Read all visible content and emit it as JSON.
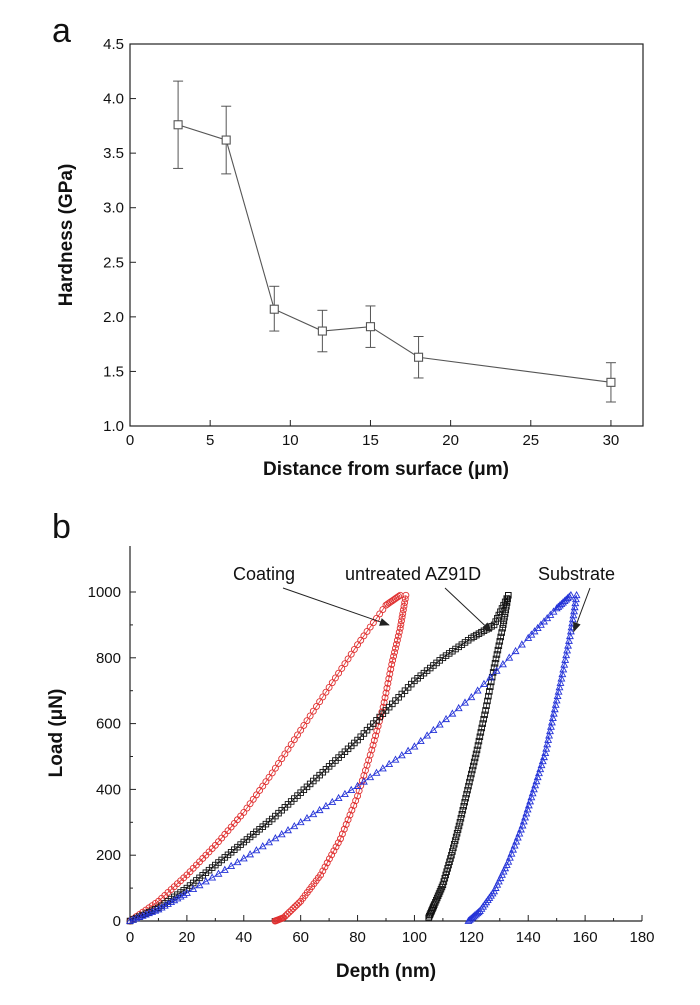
{
  "figure": {
    "background": "#ffffff"
  },
  "chart_data": [
    {
      "type": "scatter",
      "panel_label": "a",
      "xlabel": "Distance from surface (μm)",
      "ylabel": "Hardness (GPa)",
      "xlim": [
        0,
        32
      ],
      "ylim": [
        1.0,
        4.5
      ],
      "xticks": [
        0,
        5,
        10,
        15,
        20,
        25,
        30
      ],
      "yticks": [
        1.0,
        1.5,
        2.0,
        2.5,
        3.0,
        3.5,
        4.0,
        4.5
      ],
      "series": [
        {
          "marker": "open-square",
          "line": true,
          "color": "#555555",
          "x": [
            3,
            6,
            9,
            12,
            15,
            18,
            30
          ],
          "y": [
            3.76,
            3.62,
            2.07,
            1.87,
            1.91,
            1.63,
            1.4
          ],
          "err_low": [
            3.36,
            3.31,
            1.87,
            1.68,
            1.72,
            1.44,
            1.22
          ],
          "err_high": [
            4.16,
            3.93,
            2.28,
            2.06,
            2.1,
            1.82,
            1.58
          ]
        }
      ]
    },
    {
      "type": "scatter",
      "panel_label": "b",
      "xlabel": "Depth (nm)",
      "ylabel": "Load (μN)",
      "xlim": [
        0,
        180
      ],
      "ylim": [
        0,
        1130
      ],
      "xticks": [
        0,
        20,
        40,
        60,
        80,
        100,
        120,
        140,
        160,
        180
      ],
      "yticks": [
        0,
        200,
        400,
        600,
        800,
        1000
      ],
      "annotations": [
        {
          "text": "Coating",
          "arrow_to": [
            91,
            900
          ]
        },
        {
          "text": "untreated AZ91D",
          "arrow_to": [
            127,
            880
          ]
        },
        {
          "text": "Substrate",
          "arrow_to": [
            156,
            880
          ]
        }
      ],
      "series": [
        {
          "label": "Coating",
          "marker": "open-circle",
          "color": "#e03030",
          "loading": {
            "x": [
              0,
              10,
              20,
              30,
              40,
              50,
              60,
              70,
              80,
              90,
              95
            ],
            "y": [
              0,
              60,
              140,
              230,
              330,
              450,
              580,
              710,
              840,
              960,
              990
            ]
          },
          "unloading": {
            "x": [
              97,
              95,
              92,
              89,
              85,
              80,
              74,
              67,
              60,
              54,
              51
            ],
            "y": [
              990,
              890,
              780,
              650,
              520,
              380,
              250,
              140,
              60,
              10,
              0
            ]
          }
        },
        {
          "label": "untreated AZ91D",
          "marker": "open-square",
          "color": "#111111",
          "loading": {
            "x": [
              0,
              10,
              20,
              30,
              40,
              50,
              60,
              70,
              80,
              90,
              100,
              110,
              120,
              128,
              133
            ],
            "y": [
              0,
              40,
              100,
              170,
              240,
              310,
              390,
              470,
              550,
              640,
              730,
              800,
              860,
              900,
              990
            ]
          },
          "unloading": {
            "x": [
              133,
              131,
              128,
              125,
              122,
              119,
              116,
              113,
              110,
              107,
              105
            ],
            "y": [
              990,
              890,
              770,
              640,
              520,
              410,
              300,
              200,
              110,
              50,
              10
            ]
          }
        },
        {
          "label": "Substrate",
          "marker": "open-triangle",
          "color": "#2433d8",
          "loading": {
            "x": [
              0,
              10,
              20,
              40,
              60,
              80,
              100,
              120,
              140,
              150,
              155
            ],
            "y": [
              0,
              35,
              85,
              190,
              300,
              410,
              530,
              680,
              860,
              950,
              990
            ]
          },
          "unloading": {
            "x": [
              157,
              155,
              152,
              149,
              146,
              142,
              138,
              133,
              128,
              123,
              119
            ],
            "y": [
              990,
              880,
              750,
              630,
              510,
              400,
              290,
              180,
              90,
              30,
              0
            ]
          }
        }
      ]
    }
  ]
}
